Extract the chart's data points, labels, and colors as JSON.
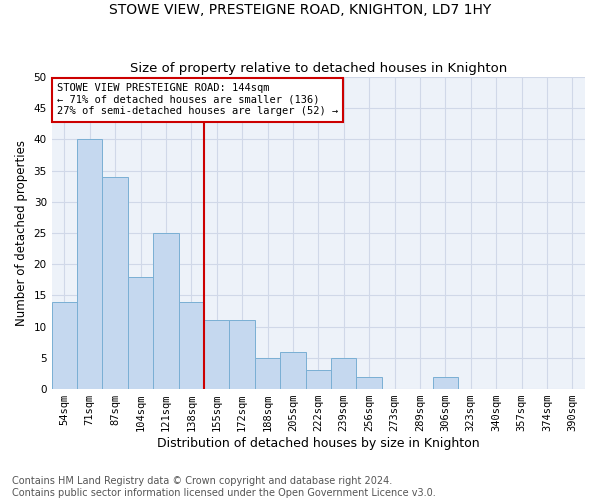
{
  "title": "STOWE VIEW, PRESTEIGNE ROAD, KNIGHTON, LD7 1HY",
  "subtitle": "Size of property relative to detached houses in Knighton",
  "xlabel": "Distribution of detached houses by size in Knighton",
  "ylabel": "Number of detached properties",
  "bar_labels": [
    "54sqm",
    "71sqm",
    "87sqm",
    "104sqm",
    "121sqm",
    "138sqm",
    "155sqm",
    "172sqm",
    "188sqm",
    "205sqm",
    "222sqm",
    "239sqm",
    "256sqm",
    "273sqm",
    "289sqm",
    "306sqm",
    "323sqm",
    "340sqm",
    "357sqm",
    "374sqm",
    "390sqm"
  ],
  "bar_values": [
    14,
    40,
    34,
    18,
    25,
    14,
    11,
    11,
    5,
    6,
    3,
    5,
    2,
    0,
    0,
    2,
    0,
    0,
    0,
    0,
    0
  ],
  "bar_color": "#c5d8ef",
  "bar_edgecolor": "#7aafd4",
  "vline_x": 5.5,
  "vline_color": "#cc0000",
  "annotation_text": "STOWE VIEW PRESTEIGNE ROAD: 144sqm\n← 71% of detached houses are smaller (136)\n27% of semi-detached houses are larger (52) →",
  "annotation_box_edgecolor": "#cc0000",
  "ylim": [
    0,
    50
  ],
  "yticks": [
    0,
    5,
    10,
    15,
    20,
    25,
    30,
    35,
    40,
    45,
    50
  ],
  "grid_color": "#d0d8e8",
  "background_color": "#edf2f9",
  "footer_text": "Contains HM Land Registry data © Crown copyright and database right 2024.\nContains public sector information licensed under the Open Government Licence v3.0.",
  "title_fontsize": 10,
  "subtitle_fontsize": 9.5,
  "xlabel_fontsize": 9,
  "ylabel_fontsize": 8.5,
  "tick_fontsize": 7.5,
  "annotation_fontsize": 7.5,
  "footer_fontsize": 7
}
